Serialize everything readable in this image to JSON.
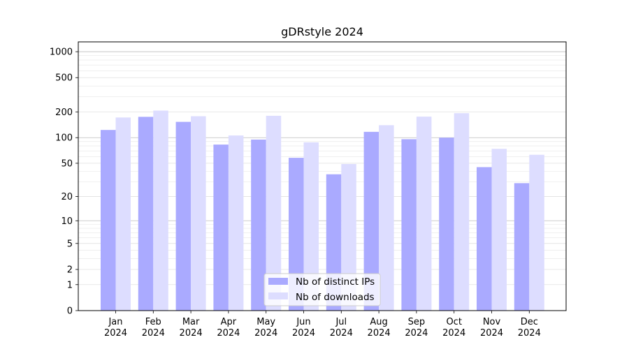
{
  "chart_data": {
    "type": "bar",
    "title": "gDRstyle 2024",
    "xlabel": "",
    "ylabel": "",
    "y_scale": "log(1+y)",
    "ylim": [
      0,
      1300
    ],
    "yticks": [
      0,
      1,
      2,
      5,
      10,
      20,
      50,
      100,
      200,
      500,
      1000
    ],
    "ytick_labels": [
      "0",
      "1",
      "2",
      "5",
      "10",
      "20",
      "50",
      "100",
      "200",
      "500",
      "1000"
    ],
    "grid": true,
    "legend_position": "bottom-center",
    "categories": [
      [
        "Jan",
        "2024"
      ],
      [
        "Feb",
        "2024"
      ],
      [
        "Mar",
        "2024"
      ],
      [
        "Apr",
        "2024"
      ],
      [
        "May",
        "2024"
      ],
      [
        "Jun",
        "2024"
      ],
      [
        "Jul",
        "2024"
      ],
      [
        "Aug",
        "2024"
      ],
      [
        "Sep",
        "2024"
      ],
      [
        "Oct",
        "2024"
      ],
      [
        "Nov",
        "2024"
      ],
      [
        "Dec",
        "2024"
      ]
    ],
    "series": [
      {
        "name": "Nb of distinct IPs",
        "color": "#aaaaff",
        "values": [
          123,
          175,
          153,
          83,
          95,
          58,
          37,
          117,
          96,
          100,
          45,
          29
        ]
      },
      {
        "name": "Nb of downloads",
        "color": "#ddddff",
        "values": [
          172,
          207,
          178,
          106,
          180,
          88,
          49,
          140,
          176,
          193,
          74,
          63
        ]
      }
    ]
  }
}
